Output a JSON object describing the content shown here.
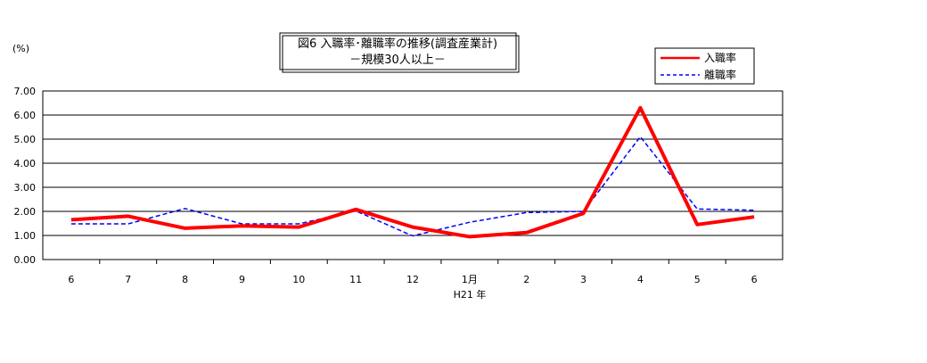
{
  "chart_data": {
    "type": "line",
    "title": "図6 入職率･離職率の推移(調査産業計)",
    "subtitle": "－規模30人以上－",
    "ylabel": "(%)",
    "xlabel": "H21 年",
    "categories": [
      "6",
      "7",
      "8",
      "9",
      "10",
      "11",
      "12",
      "1月",
      "2",
      "3",
      "4",
      "5",
      "6"
    ],
    "ylim": [
      0,
      7
    ],
    "yticks": [
      "0.00",
      "1.00",
      "2.00",
      "3.00",
      "4.00",
      "5.00",
      "6.00",
      "7.00"
    ],
    "grid": true,
    "legend_position": "top-right",
    "series": [
      {
        "name": "入職率",
        "color": "#ff0000",
        "style": "solid",
        "values": [
          1.65,
          1.8,
          1.3,
          1.4,
          1.35,
          2.08,
          1.35,
          0.95,
          1.12,
          1.92,
          6.3,
          1.45,
          1.77
        ]
      },
      {
        "name": "離職率",
        "color": "#0000ff",
        "style": "dashed",
        "values": [
          1.48,
          1.48,
          2.12,
          1.48,
          1.48,
          2.02,
          0.98,
          1.55,
          1.95,
          2.0,
          5.1,
          2.1,
          2.05
        ]
      }
    ]
  }
}
